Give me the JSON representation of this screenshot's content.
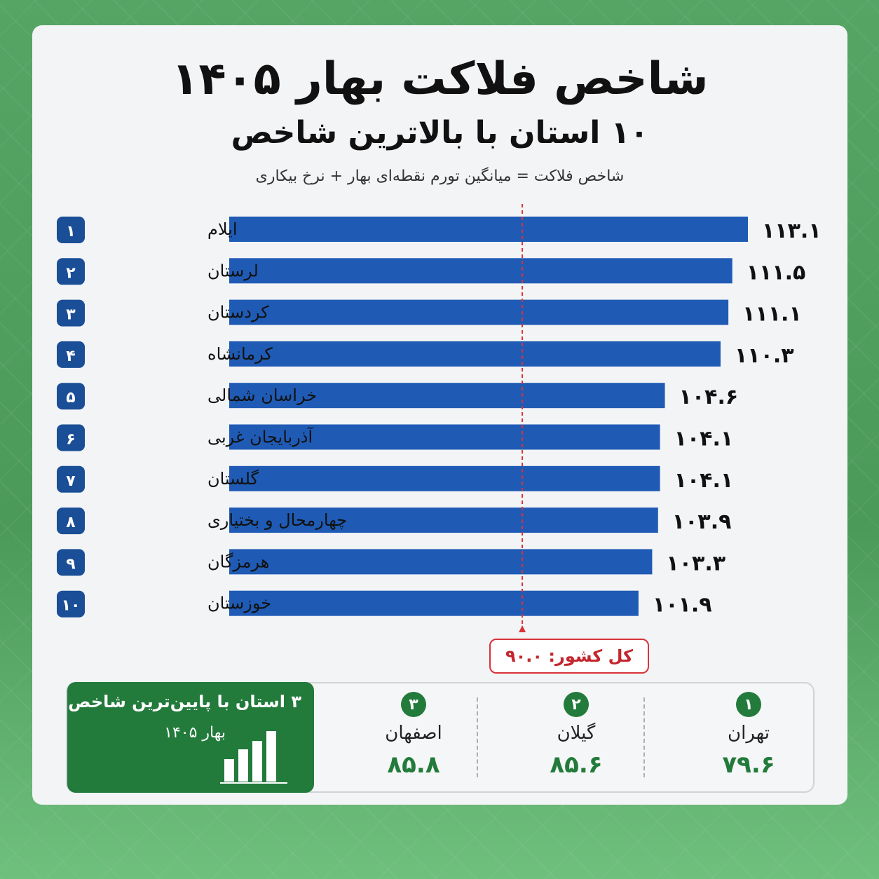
{
  "title": "شاخص فلاکت بهار ۱۴۰۵",
  "subtitle": "۱۰ استان با بالاترین شاخص",
  "formula": "شاخص فلاکت = میانگین تورم نقطه‌ای بهار + نرخ بیکاری",
  "national_label": "کل کشور: ۹۰.۰",
  "colors": {
    "bar": "#1f5bb5",
    "rank_badge": "#1a4e96",
    "national_line": "#d9323a",
    "green": "#227a3b"
  },
  "chart_data": {
    "type": "bar",
    "orientation": "horizontal",
    "categories": [
      "ایلام",
      "لرستان",
      "کردستان",
      "کرمانشاه",
      "خراسان شمالی",
      "آذربایجان غربی",
      "گلستان",
      "چهارمحال و بختیاری",
      "هرمزگان",
      "خوزستان"
    ],
    "ranks": [
      "۱",
      "۲",
      "۳",
      "۴",
      "۵",
      "۶",
      "۷",
      "۸",
      "۹",
      "۱۰"
    ],
    "values": [
      113.1,
      111.5,
      111.1,
      110.3,
      104.6,
      104.1,
      104.1,
      103.9,
      103.3,
      101.9
    ],
    "value_labels": [
      "۱۱۳.۱",
      "۱۱۱.۵",
      "۱۱۱.۱",
      "۱۱۰.۳",
      "۱۰۴.۶",
      "۱۰۴.۱",
      "۱۰۴.۱",
      "۱۰۳.۹",
      "۱۰۳.۳",
      "۱۰۱.۹"
    ],
    "reference_line": {
      "label": "کل کشور",
      "value": 90.0
    }
  },
  "lowest": {
    "title": "۳ استان با پایین‌ترین شاخص",
    "subtitle": "بهار ۱۴۰۵",
    "items": [
      {
        "rank": "۱",
        "name": "تهران",
        "value": "۷۹.۶"
      },
      {
        "rank": "۲",
        "name": "گیلان",
        "value": "۸۵.۶"
      },
      {
        "rank": "۳",
        "name": "اصفهان",
        "value": "۸۵.۸"
      }
    ]
  }
}
